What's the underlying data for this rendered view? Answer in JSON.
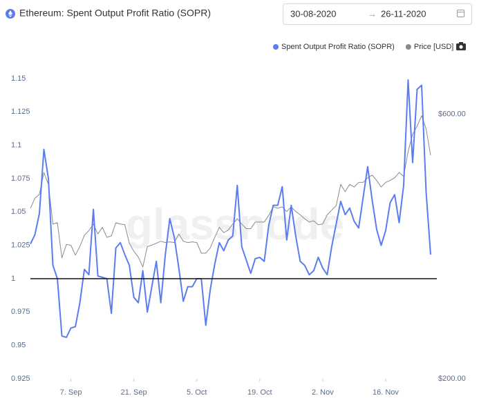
{
  "chart_data": {
    "type": "line",
    "title": "Ethereum: Spent Output Profit Ratio (SOPR)",
    "date_from": "30-08-2020",
    "date_to": "26-11-2020",
    "watermark": "glassnode",
    "x": [
      "29. Aug",
      "30. Aug",
      "31. Aug",
      "1. Sep",
      "2. Sep",
      "3. Sep",
      "4. Sep",
      "5. Sep",
      "6. Sep",
      "7. Sep",
      "8. Sep",
      "9. Sep",
      "10. Sep",
      "11. Sep",
      "12. Sep",
      "13. Sep",
      "14. Sep",
      "15. Sep",
      "16. Sep",
      "17. Sep",
      "18. Sep",
      "19. Sep",
      "20. Sep",
      "21. Sep",
      "22. Sep",
      "23. Sep",
      "24. Sep",
      "25. Sep",
      "26. Sep",
      "27. Sep",
      "28. Sep",
      "29. Sep",
      "30. Sep",
      "1. Oct",
      "2. Oct",
      "3. Oct",
      "4. Oct",
      "5. Oct",
      "6. Oct",
      "7. Oct",
      "8. Oct",
      "9. Oct",
      "10. Oct",
      "11. Oct",
      "12. Oct",
      "13. Oct",
      "14. Oct",
      "15. Oct",
      "16. Oct",
      "17. Oct",
      "18. Oct",
      "19. Oct",
      "20. Oct",
      "21. Oct",
      "22. Oct",
      "23. Oct",
      "24. Oct",
      "25. Oct",
      "26. Oct",
      "27. Oct",
      "28. Oct",
      "29. Oct",
      "30. Oct",
      "31. Oct",
      "1. Nov",
      "2. Nov",
      "3. Nov",
      "4. Nov",
      "5. Nov",
      "6. Nov",
      "7. Nov",
      "8. Nov",
      "9. Nov",
      "10. Nov",
      "11. Nov",
      "12. Nov",
      "13. Nov",
      "14. Nov",
      "15. Nov",
      "16. Nov",
      "17. Nov",
      "18. Nov",
      "19. Nov",
      "20. Nov",
      "21. Nov",
      "22. Nov",
      "23. Nov",
      "24. Nov",
      "25. Nov",
      "26. Nov"
    ],
    "xticks": [
      "7. Sep",
      "21. Sep",
      "5. Oct",
      "19. Oct",
      "2. Nov",
      "16. Nov"
    ],
    "series": [
      {
        "name": "Spent Output Profit Ratio (SOPR)",
        "color": "#5b7cf0",
        "axis": "y",
        "values": [
          1.026,
          1.033,
          1.049,
          1.097,
          1.075,
          1.01,
          1.0,
          0.957,
          0.956,
          0.963,
          0.964,
          0.982,
          1.007,
          1.003,
          1.052,
          1.002,
          1.001,
          1.0,
          0.974,
          1.023,
          1.027,
          1.018,
          1.01,
          0.986,
          0.982,
          1.006,
          0.975,
          0.994,
          1.013,
          0.982,
          1.018,
          1.045,
          1.031,
          1.008,
          0.983,
          0.994,
          0.994,
          1.0,
          1.0,
          0.965,
          0.992,
          1.011,
          1.027,
          1.021,
          1.029,
          1.032,
          1.07,
          1.024,
          1.014,
          1.004,
          1.015,
          1.016,
          1.013,
          1.04,
          1.055,
          1.055,
          1.069,
          1.029,
          1.055,
          1.032,
          1.013,
          1.01,
          1.003,
          1.006,
          1.016,
          1.008,
          1.003,
          1.024,
          1.041,
          1.058,
          1.048,
          1.053,
          1.043,
          1.038,
          1.061,
          1.084,
          1.059,
          1.037,
          1.025,
          1.036,
          1.057,
          1.063,
          1.042,
          1.07,
          1.149,
          1.087,
          1.142,
          1.145,
          1.065,
          1.018
        ]
      },
      {
        "name": "Price [USD]",
        "color": "#8a8a8a",
        "axis": "y2",
        "values": [
          458,
          473,
          479,
          512,
          494,
          434,
          436,
          383,
          403,
          402,
          387,
          400,
          417,
          424,
          434,
          419,
          429,
          414,
          416,
          436,
          434,
          433,
          405,
          393,
          384,
          369,
          400,
          402,
          405,
          408,
          406,
          407,
          406,
          419,
          408,
          406,
          407,
          406,
          390,
          390,
          398,
          414,
          429,
          421,
          425,
          434,
          442,
          434,
          427,
          427,
          437,
          437,
          437,
          447,
          460,
          458,
          460,
          453,
          460,
          453,
          448,
          442,
          437,
          439,
          433,
          434,
          448,
          455,
          462,
          494,
          483,
          494,
          490,
          497,
          497,
          504,
          508,
          500,
          490,
          497,
          500,
          504,
          512,
          506,
          544,
          570,
          582,
          598,
          578,
          538
        ]
      }
    ],
    "ylim": [
      0.925,
      1.15
    ],
    "yticks": [
      0.925,
      0.95,
      0.975,
      1,
      1.025,
      1.05,
      1.075,
      1.1,
      1.125,
      1.15
    ],
    "y2lim": [
      200,
      654
    ],
    "y2ticks": [
      {
        "value": 600,
        "label": "$600.00"
      },
      {
        "value": 200,
        "label": "$200.00"
      }
    ],
    "baseline": 1
  }
}
